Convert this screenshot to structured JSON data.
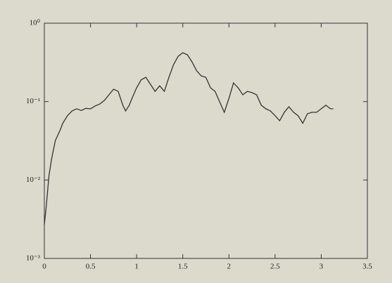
{
  "chart_data": {
    "type": "line",
    "log_y": true,
    "color": "#333333",
    "x": [
      0,
      0.02,
      0.05,
      0.08,
      0.12,
      0.17,
      0.2,
      0.25,
      0.3,
      0.35,
      0.4,
      0.45,
      0.5,
      0.55,
      0.6,
      0.65,
      0.7,
      0.75,
      0.8,
      0.85,
      0.88,
      0.92,
      0.95,
      1.0,
      1.05,
      1.1,
      1.15,
      1.2,
      1.25,
      1.3,
      1.35,
      1.4,
      1.45,
      1.5,
      1.55,
      1.6,
      1.65,
      1.7,
      1.75,
      1.8,
      1.85,
      1.9,
      1.95,
      2.0,
      2.05,
      2.1,
      2.15,
      2.2,
      2.25,
      2.3,
      2.35,
      2.4,
      2.45,
      2.5,
      2.55,
      2.6,
      2.65,
      2.7,
      2.75,
      2.8,
      2.85,
      2.9,
      2.95,
      3.0,
      3.05,
      3.1,
      3.13
    ],
    "values": [
      0.0027,
      0.0045,
      0.0114,
      0.019,
      0.032,
      0.043,
      0.053,
      0.066,
      0.076,
      0.081,
      0.077,
      0.082,
      0.081,
      0.088,
      0.093,
      0.103,
      0.122,
      0.144,
      0.135,
      0.09,
      0.076,
      0.09,
      0.11,
      0.15,
      0.19,
      0.204,
      0.166,
      0.135,
      0.159,
      0.135,
      0.204,
      0.296,
      0.379,
      0.42,
      0.395,
      0.321,
      0.247,
      0.213,
      0.204,
      0.15,
      0.135,
      0.099,
      0.073,
      0.11,
      0.173,
      0.15,
      0.122,
      0.135,
      0.13,
      0.122,
      0.09,
      0.081,
      0.076,
      0.066,
      0.057,
      0.073,
      0.086,
      0.073,
      0.066,
      0.053,
      0.07,
      0.073,
      0.073,
      0.081,
      0.09,
      0.081,
      0.081
    ],
    "xlim": [
      0,
      3.5
    ],
    "xticks": [
      0,
      0.5,
      1,
      1.5,
      2,
      2.5,
      3,
      3.5
    ],
    "ylim": [
      0.001,
      1
    ],
    "yticks": [
      {
        "value": 0.001,
        "label": "10⁻³"
      },
      {
        "value": 0.01,
        "label": "10⁻²"
      },
      {
        "value": 0.1,
        "label": "10⁻¹"
      },
      {
        "value": 1,
        "label": "10⁰"
      }
    ]
  }
}
